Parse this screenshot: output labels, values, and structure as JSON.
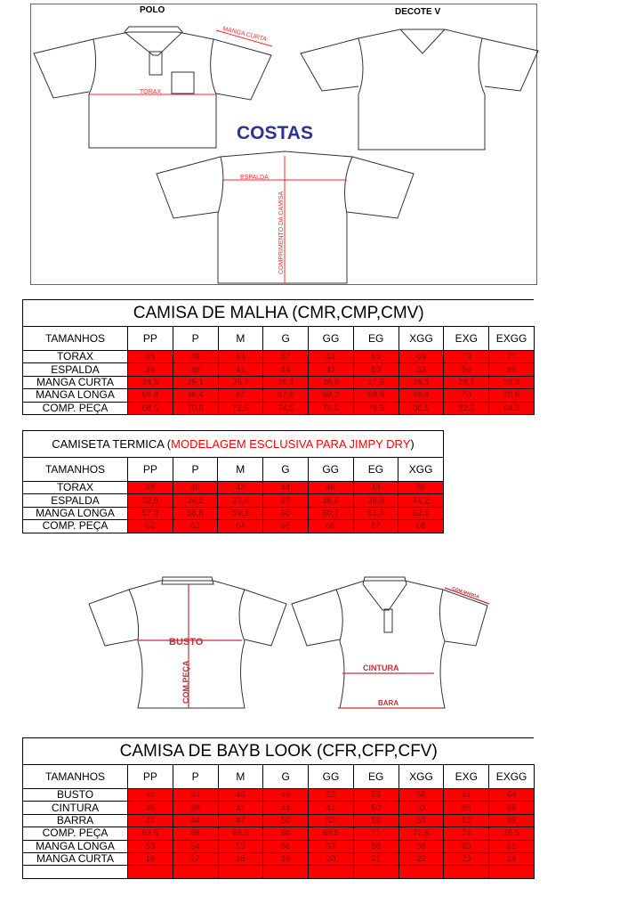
{
  "diagram_top": {
    "polo_label": "POLO",
    "decote_label": "DECOTE V",
    "costas_label": "COSTAS",
    "torax_label": "TORAX",
    "manga_curta_label": "MANGA CURTA",
    "espalda_label": "ESPALDA",
    "comprimento_label": "COMPRIMENTO DA CAMISA"
  },
  "diagram_bottom": {
    "busto_label": "BUSTO",
    "comp_peca_label": "COM.PEÇA",
    "cintura_label": "CINTURA",
    "bara_label": "BARA",
    "com_manga_label": "COM.MANGA"
  },
  "colors": {
    "cell_fill": "#ff0000",
    "label_red": "#ff0000",
    "costas_blue": "#2b3492"
  },
  "tables": [
    {
      "title": "CAMISA DE MALHA (CMR,CMP,CMV)",
      "header": [
        "TAMANHOS",
        "PP",
        "P",
        "M",
        "G",
        "GG",
        "EG",
        "XGG",
        "EXG",
        "EXGG"
      ],
      "rows": [
        {
          "label": "TORAX",
          "values": [
            "45",
            "49",
            "53",
            "57",
            "61",
            "65",
            "69",
            "73",
            "77"
          ]
        },
        {
          "label": "ESPALDA",
          "values": [
            "35",
            "38",
            "41",
            "44",
            "47",
            "50",
            "53",
            "56",
            "59"
          ]
        },
        {
          "label": "MANGA CURTA",
          "values": [
            "24,5",
            "25,1",
            "25,7",
            "26,3",
            "26,9",
            "27,5",
            "28,1",
            "28,7",
            "29,3"
          ]
        },
        {
          "label": "MANGA LONGA",
          "values": [
            "65,8",
            "66,4",
            "67",
            "67,6",
            "68,2",
            "68,8",
            "69,4",
            "70",
            "70,6"
          ]
        },
        {
          "label": "COMP. PEÇA",
          "values": [
            "68,5",
            "70,5",
            "72,5",
            "74,5",
            "76,5",
            "78,5",
            "80,5",
            "82,5",
            "84,5"
          ]
        }
      ]
    },
    {
      "title": "CAMISETA TERMICA (",
      "title_red": "MODELAGEM ESCLUSIVA PARA JIMPY DRY",
      "title_end": ")",
      "header": [
        "TAMANHOS",
        "PP",
        "P",
        "M",
        "G",
        "GG",
        "EG",
        "XGG"
      ],
      "rows": [
        {
          "label": "TORAX",
          "values": [
            "38",
            "40",
            "42",
            "44",
            "46",
            "48",
            "50"
          ]
        },
        {
          "label": "ESPALDA",
          "values": [
            "32,8",
            "34,2",
            "35,6",
            "37",
            "38,4",
            "39,8",
            "41,2"
          ]
        },
        {
          "label": "MANGA LONGA",
          "values": [
            "57,9",
            "58,6",
            "59,3",
            "60",
            "60,7",
            "61,4",
            "62,1"
          ]
        },
        {
          "label": "COMP. PEÇA",
          "values": [
            "62",
            "63",
            "64",
            "65",
            "66",
            "67",
            "68"
          ]
        }
      ]
    },
    {
      "title": "CAMISA DE BAYB LOOK (CFR,CFP,CFV)",
      "header": [
        "TAMANHOS",
        "PP",
        "P",
        "M",
        "G",
        "GG",
        "EG",
        "XGG",
        "EXG",
        "EXGG"
      ],
      "rows": [
        {
          "label": "BUSTO",
          "values": [
            "40",
            "43",
            "46",
            "49",
            "52",
            "55",
            "58",
            "61",
            "64"
          ]
        },
        {
          "label": "CINTURA",
          "values": [
            "35",
            "38",
            "41",
            "44",
            "47",
            "50",
            "53",
            "56",
            "59"
          ]
        },
        {
          "label": "BARRA",
          "values": [
            "41",
            "44",
            "47",
            "50",
            "53",
            "56",
            "59",
            "62",
            "65"
          ]
        },
        {
          "label": "COMP. PEÇA",
          "values": [
            "63,5",
            "65",
            "66,5",
            "68",
            "69,5",
            "71",
            "72,5",
            "74",
            "75,5"
          ]
        },
        {
          "label": "MANGA LONGA",
          "values": [
            "53",
            "54",
            "55",
            "56",
            "57",
            "58",
            "59",
            "60",
            "61"
          ]
        },
        {
          "label": "MANGA CURTA",
          "values": [
            "16",
            "17",
            "18",
            "19",
            "20",
            "21",
            "22",
            "23",
            "24"
          ]
        },
        {
          "label": "",
          "values": [
            "",
            "",
            "",
            "",
            "",
            "",
            "",
            "",
            ""
          ]
        }
      ]
    }
  ]
}
